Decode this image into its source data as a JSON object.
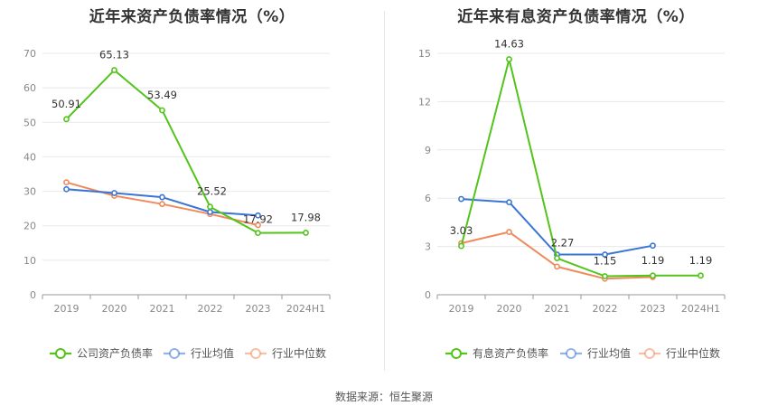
{
  "source_text": "数据来源：恒生聚源",
  "chart_data": [
    {
      "type": "line",
      "title": "近年来资产负债率情况（%）",
      "categories": [
        "2019",
        "2020",
        "2021",
        "2022",
        "2023",
        "2024H1"
      ],
      "ylim": [
        0,
        70
      ],
      "yticks": [
        0,
        10,
        20,
        30,
        40,
        50,
        60,
        70
      ],
      "grid": true,
      "legend_position": "bottom",
      "series": [
        {
          "name": "公司资产负债率",
          "color": "#52c41a",
          "values": [
            50.91,
            65.13,
            53.49,
            25.52,
            17.92,
            17.98
          ],
          "labels": [
            "50.91",
            "65.13",
            "53.49",
            "25.52",
            "17.92",
            "17.98"
          ]
        },
        {
          "name": "行业均值",
          "color": "#3a75d6",
          "values": [
            30.6,
            29.5,
            28.3,
            24.0,
            23.0,
            null
          ]
        },
        {
          "name": "行业中位数",
          "color": "#f08a5d",
          "values": [
            32.6,
            28.7,
            26.3,
            23.4,
            20.2,
            null
          ]
        }
      ]
    },
    {
      "type": "line",
      "title": "近年来有息资产负债率情况（%）",
      "categories": [
        "2019",
        "2020",
        "2021",
        "2022",
        "2023",
        "2024H1"
      ],
      "ylim": [
        0,
        15
      ],
      "yticks": [
        0,
        3,
        6,
        9,
        12,
        15
      ],
      "grid": true,
      "legend_position": "bottom",
      "series": [
        {
          "name": "有息资产负债率",
          "color": "#52c41a",
          "values": [
            3.03,
            14.63,
            2.27,
            1.15,
            1.19,
            1.19
          ],
          "labels": [
            "3.03",
            "14.63",
            "2.27",
            "1.15",
            "1.19",
            "1.19"
          ]
        },
        {
          "name": "行业均值",
          "color": "#3a75d6",
          "values": [
            5.95,
            5.75,
            2.5,
            2.5,
            3.05,
            null
          ]
        },
        {
          "name": "行业中位数",
          "color": "#f08a5d",
          "values": [
            3.2,
            3.9,
            1.75,
            1.0,
            1.1,
            null
          ]
        }
      ]
    }
  ]
}
